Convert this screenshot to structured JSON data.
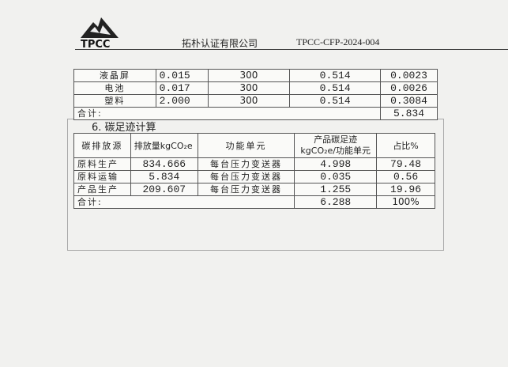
{
  "header": {
    "logo_text": "TPCC",
    "company": "拓朴认证有限公司",
    "doc_id": "TPCC-CFP-2024-004"
  },
  "table1": {
    "rows": [
      {
        "name": "液晶屏",
        "mass": "0.015",
        "distance": "300",
        "factor": "0.514",
        "emission": "0.0023"
      },
      {
        "name": "电池",
        "mass": "0.017",
        "distance": "300",
        "factor": "0.514",
        "emission": "0.0026"
      },
      {
        "name": "塑料",
        "mass": "2.000",
        "distance": "300",
        "factor": "0.514",
        "emission": "0.3084"
      }
    ],
    "total_label": "合计:",
    "total": "5.834"
  },
  "section": {
    "heading": "6. 碳足迹计算"
  },
  "table2": {
    "headers": [
      "碳排放源",
      "排放量kgCO₂e",
      "功能单元",
      "产品碳足迹 kgCO₂e/功能单元",
      "占比%"
    ],
    "rows": [
      [
        "原料生产",
        "834.666",
        "每台压力变送器",
        "4.998",
        "79.48"
      ],
      [
        "原料运输",
        "5.834",
        "每台压力变送器",
        "0.035",
        "0.56"
      ],
      [
        "产品生产",
        "209.607",
        "每台压力变送器",
        "1.255",
        "19.96"
      ]
    ],
    "total_label": "合计:",
    "total_footprint": "6.288",
    "total_share": "100%"
  }
}
